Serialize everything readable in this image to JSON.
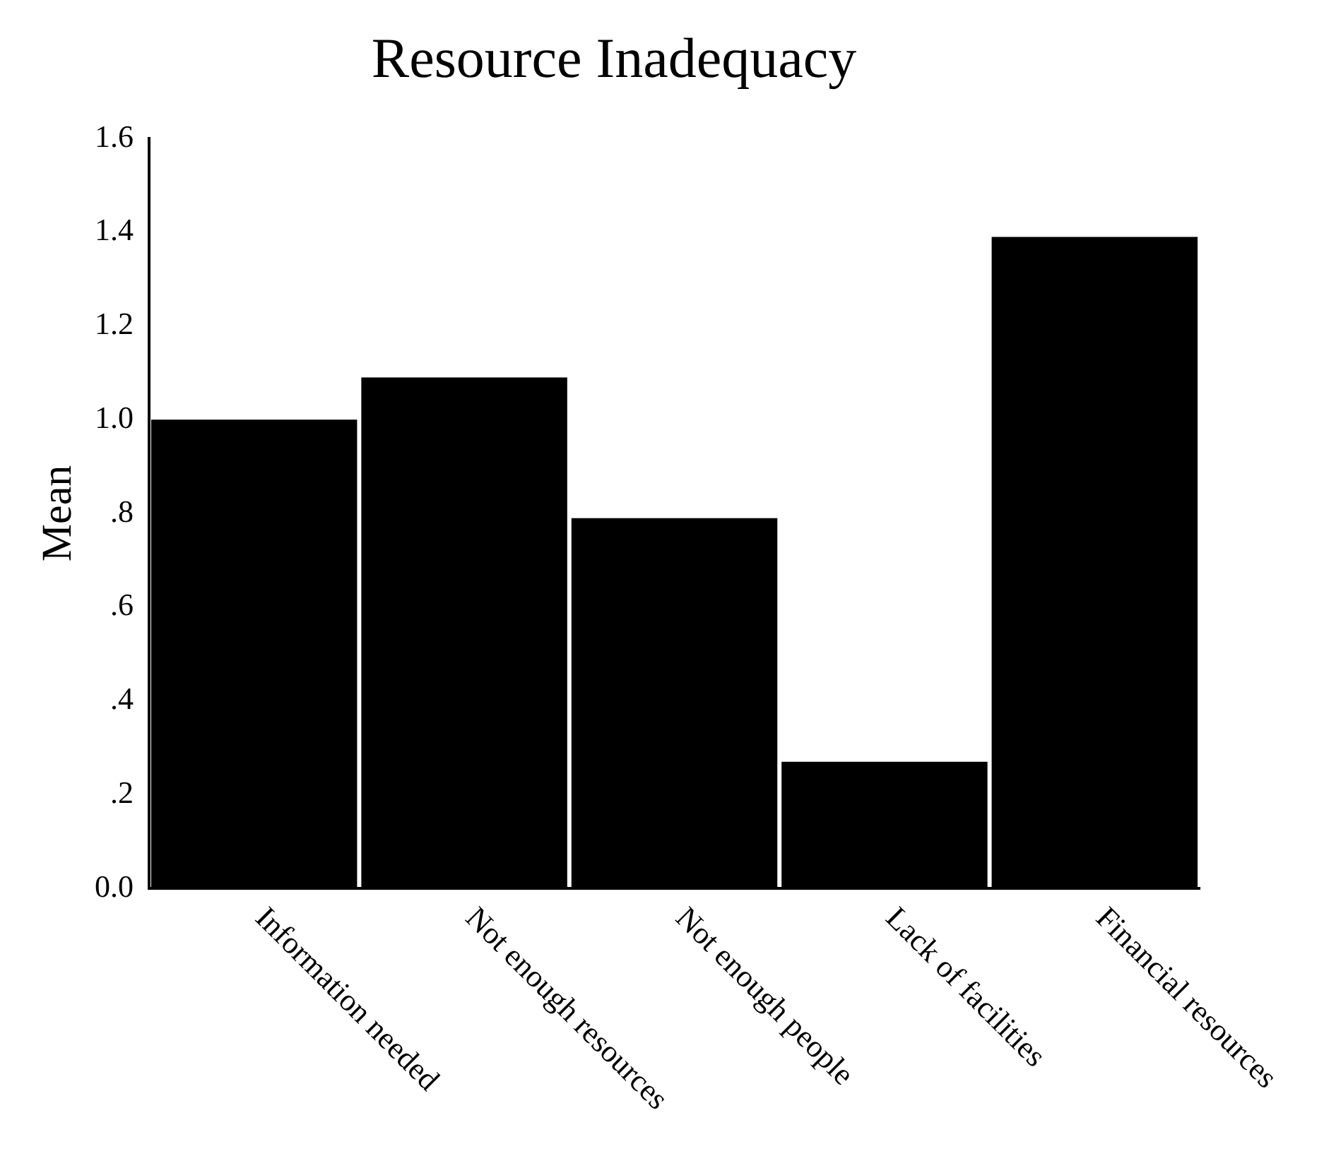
{
  "chart_data": {
    "type": "bar",
    "title": "Resource Inadequacy",
    "ylabel": "Mean",
    "categories": [
      "Information needed",
      "Not enough resources",
      "Not enough people",
      "Lack of facilities",
      "Financial resources"
    ],
    "values": [
      1.0,
      1.09,
      0.79,
      0.27,
      1.39
    ],
    "color": "#000000",
    "ylim": [
      0,
      1.6
    ],
    "yticks": [
      {
        "value": 0,
        "label": "0.0"
      },
      {
        "value": 0.2,
        "label": ".2"
      },
      {
        "value": 0.4,
        "label": ".4"
      },
      {
        "value": 0.6,
        "label": ".6"
      },
      {
        "value": 0.8,
        "label": ".8"
      },
      {
        "value": 1.0,
        "label": "1.0"
      },
      {
        "value": 1.2,
        "label": "1.2"
      },
      {
        "value": 1.4,
        "label": "1.4"
      },
      {
        "value": 1.6,
        "label": "1.6"
      }
    ],
    "grid": false,
    "legend": false
  }
}
